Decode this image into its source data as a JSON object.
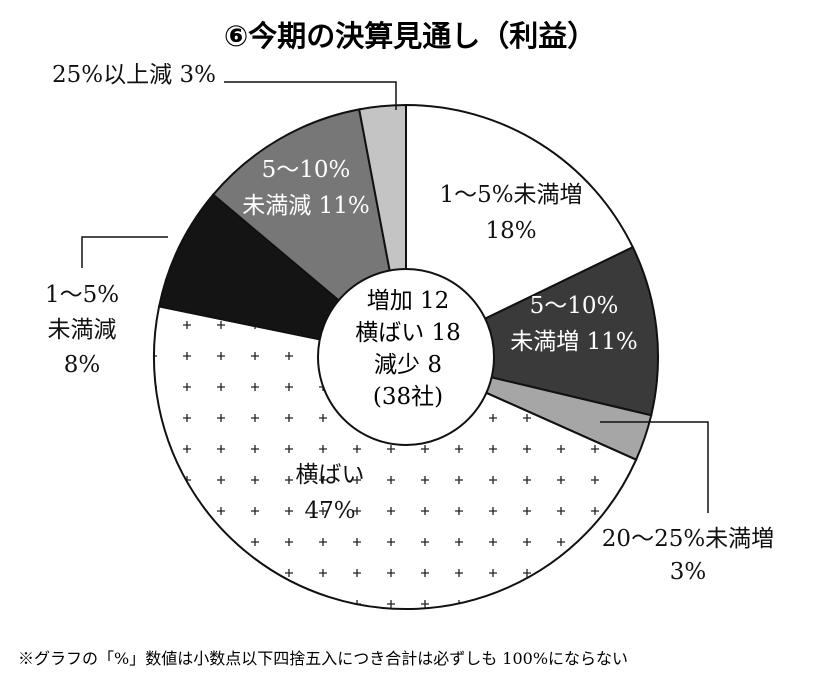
{
  "chart_data": {
    "type": "pie",
    "donut": true,
    "title": "⑥今期の決算見通し（利益）",
    "slices": [
      {
        "label_lines": [
          "1～5%未満増",
          "18%"
        ],
        "value": 18,
        "color": "#ffffff",
        "pattern": "none",
        "label_color": "#111111"
      },
      {
        "label_lines": [
          "5～10%",
          "未満増 11%"
        ],
        "value": 11,
        "color": "#3a3a3a",
        "pattern": "none",
        "label_color": "#ffffff"
      },
      {
        "label_lines": [
          "20～25%未満増",
          "3%"
        ],
        "value": 3,
        "color": "#a6a6a6",
        "pattern": "none",
        "label_color": "#111111"
      },
      {
        "label_lines": [
          "横ばい",
          "47%"
        ],
        "value": 47,
        "color": "#ffffff",
        "pattern": "plus",
        "label_color": "#111111"
      },
      {
        "label_lines": [
          "1～5%",
          "未満減",
          "8%"
        ],
        "value": 8,
        "color": "#141414",
        "pattern": "none",
        "label_color": "#111111"
      },
      {
        "label_lines": [
          "5～10%",
          "未満減 11%"
        ],
        "value": 11,
        "color": "#777777",
        "pattern": "none",
        "label_color": "#ffffff"
      },
      {
        "label_lines": [
          "25%以上減 3%"
        ],
        "value": 3,
        "color": "#c4c4c4",
        "pattern": "none",
        "label_color": "#111111"
      }
    ],
    "center_lines": [
      "増加 12",
      "横ばい 18",
      "減少 8",
      "(38社)"
    ],
    "note": "※グラフの「%」数値は小数点以下四捨五入につき合計は必ずしも 100%にならない"
  }
}
